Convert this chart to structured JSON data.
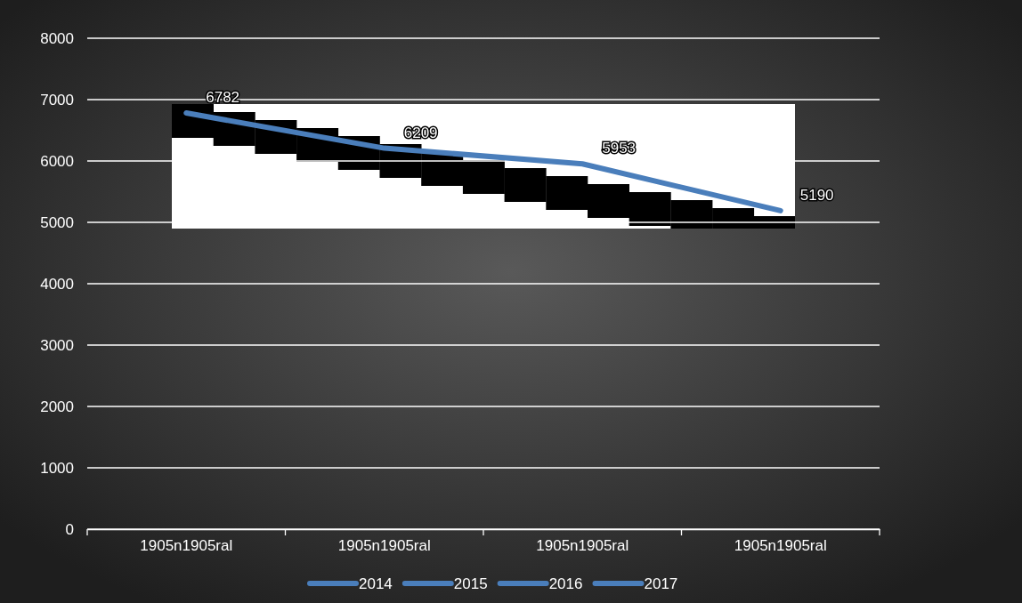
{
  "chart_data": {
    "type": "line",
    "categories": [
      "1905n1905ral",
      "1905n1905ral",
      "1905n1905ral",
      "1905n1905ral"
    ],
    "series": [
      {
        "color": "#4a7ebb",
        "values": [
          6782,
          6209,
          5953,
          5190
        ]
      }
    ],
    "ylim": [
      0,
      8000
    ],
    "yticks": [
      0,
      1000,
      2000,
      3000,
      4000,
      5000,
      6000,
      7000,
      8000
    ],
    "grid": "y",
    "data_labels": true,
    "marker": "none",
    "line_style": "solid",
    "annotations": [
      "2014",
      "2015",
      "2016",
      "2017"
    ]
  }
}
